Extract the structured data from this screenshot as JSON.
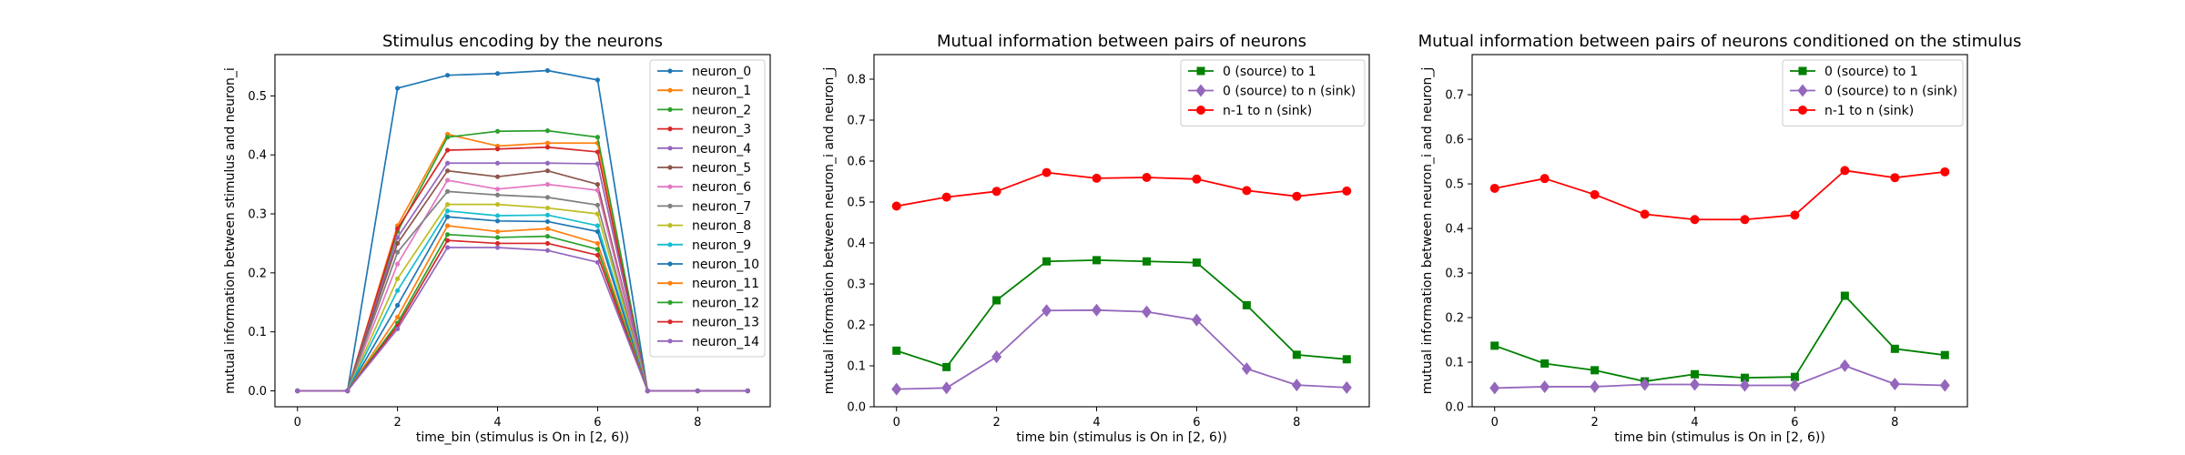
{
  "chart_data": [
    {
      "type": "line",
      "title": "Stimulus encoding by the neurons",
      "xlabel": "time_bin (stimulus is On in [2, 6))",
      "ylabel": "mutual information between stimulus and neuron_i",
      "xlim": [
        -0.45,
        9.45
      ],
      "ylim": [
        -0.027,
        0.57
      ],
      "xticks": [
        0,
        2,
        4,
        6,
        8
      ],
      "yticks": [
        0.0,
        0.1,
        0.2,
        0.3,
        0.4,
        0.5
      ],
      "ytick_labels": [
        "0.0",
        "0.1",
        "0.2",
        "0.3",
        "0.4",
        "0.5"
      ],
      "legend_position": "top-right",
      "x": [
        0,
        1,
        2,
        3,
        4,
        5,
        6,
        7,
        8,
        9
      ],
      "series": [
        {
          "name": "neuron_0",
          "color": "#1f77b4",
          "marker": "dot",
          "values": [
            0,
            0,
            0.513,
            0.535,
            0.538,
            0.543,
            0.527,
            0,
            0,
            0
          ]
        },
        {
          "name": "neuron_1",
          "color": "#ff7f0e",
          "marker": "dot",
          "values": [
            0,
            0,
            0.28,
            0.435,
            0.415,
            0.42,
            0.42,
            0,
            0,
            0
          ]
        },
        {
          "name": "neuron_2",
          "color": "#2ca02c",
          "marker": "dot",
          "values": [
            0,
            0,
            0.27,
            0.43,
            0.44,
            0.441,
            0.43,
            0,
            0,
            0
          ]
        },
        {
          "name": "neuron_3",
          "color": "#d62728",
          "marker": "dot",
          "values": [
            0,
            0,
            0.275,
            0.408,
            0.41,
            0.413,
            0.405,
            0,
            0,
            0
          ]
        },
        {
          "name": "neuron_4",
          "color": "#9467bd",
          "marker": "dot",
          "values": [
            0,
            0,
            0.26,
            0.386,
            0.386,
            0.386,
            0.385,
            0,
            0,
            0
          ]
        },
        {
          "name": "neuron_5",
          "color": "#8c564b",
          "marker": "dot",
          "values": [
            0,
            0,
            0.25,
            0.373,
            0.363,
            0.373,
            0.35,
            0,
            0,
            0
          ]
        },
        {
          "name": "neuron_6",
          "color": "#e377c2",
          "marker": "dot",
          "values": [
            0,
            0,
            0.215,
            0.357,
            0.342,
            0.35,
            0.34,
            0,
            0,
            0
          ]
        },
        {
          "name": "neuron_7",
          "color": "#7f7f7f",
          "marker": "dot",
          "values": [
            0,
            0,
            0.235,
            0.338,
            0.332,
            0.328,
            0.315,
            0,
            0,
            0
          ]
        },
        {
          "name": "neuron_8",
          "color": "#bcbd22",
          "marker": "dot",
          "values": [
            0,
            0,
            0.19,
            0.316,
            0.316,
            0.31,
            0.3,
            0,
            0,
            0
          ]
        },
        {
          "name": "neuron_9",
          "color": "#17becf",
          "marker": "dot",
          "values": [
            0,
            0,
            0.17,
            0.305,
            0.297,
            0.298,
            0.28,
            0,
            0,
            0
          ]
        },
        {
          "name": "neuron_10",
          "color": "#1f77b4",
          "marker": "dot",
          "values": [
            0,
            0,
            0.145,
            0.295,
            0.288,
            0.287,
            0.27,
            0,
            0,
            0
          ]
        },
        {
          "name": "neuron_11",
          "color": "#ff7f0e",
          "marker": "dot",
          "values": [
            0,
            0,
            0.125,
            0.28,
            0.27,
            0.275,
            0.25,
            0,
            0,
            0
          ]
        },
        {
          "name": "neuron_12",
          "color": "#2ca02c",
          "marker": "dot",
          "values": [
            0,
            0,
            0.115,
            0.265,
            0.26,
            0.262,
            0.24,
            0,
            0,
            0
          ]
        },
        {
          "name": "neuron_13",
          "color": "#d62728",
          "marker": "dot",
          "values": [
            0,
            0,
            0.11,
            0.255,
            0.25,
            0.25,
            0.23,
            0,
            0,
            0
          ]
        },
        {
          "name": "neuron_14",
          "color": "#9467bd",
          "marker": "dot",
          "values": [
            0,
            0,
            0.105,
            0.243,
            0.243,
            0.238,
            0.218,
            0,
            0,
            0
          ]
        }
      ]
    },
    {
      "type": "line",
      "title": "Mutual information between pairs of neurons",
      "xlabel": "time bin (stimulus is On in [2, 6))",
      "ylabel": "mutual information between neuron_i and neuron_j",
      "xlim": [
        -0.45,
        9.45
      ],
      "ylim": [
        0,
        0.86
      ],
      "xticks": [
        0,
        2,
        4,
        6,
        8
      ],
      "yticks": [
        0.0,
        0.1,
        0.2,
        0.3,
        0.4,
        0.5,
        0.6,
        0.7,
        0.8
      ],
      "ytick_labels": [
        "0.0",
        "0.1",
        "0.2",
        "0.3",
        "0.4",
        "0.5",
        "0.6",
        "0.7",
        "0.8"
      ],
      "legend_position": "top-right",
      "x": [
        0,
        1,
        2,
        3,
        4,
        5,
        6,
        7,
        8,
        9
      ],
      "series": [
        {
          "name": "0 (source) to 1",
          "color": "#008000",
          "marker": "square",
          "values": [
            0.137,
            0.097,
            0.26,
            0.355,
            0.358,
            0.355,
            0.352,
            0.248,
            0.127,
            0.116
          ]
        },
        {
          "name": "0 (source) to n (sink)",
          "color": "#9467bd",
          "marker": "diamond",
          "values": [
            0.043,
            0.046,
            0.122,
            0.235,
            0.236,
            0.232,
            0.212,
            0.093,
            0.053,
            0.047
          ]
        },
        {
          "name": "n-1 to n (sink)",
          "color": "#ff0000",
          "marker": "circle",
          "values": [
            0.49,
            0.512,
            0.526,
            0.572,
            0.558,
            0.56,
            0.556,
            0.528,
            0.514,
            0.527
          ]
        }
      ]
    },
    {
      "type": "line",
      "title": "Mutual information between pairs of neurons conditioned on the stimulus",
      "xlabel": "time bin (stimulus is On in [2, 6))",
      "ylabel": "mutual information between neuron_i and neuron_j",
      "xlim": [
        -0.45,
        9.45
      ],
      "ylim": [
        0,
        0.79
      ],
      "xticks": [
        0,
        2,
        4,
        6,
        8
      ],
      "yticks": [
        0.0,
        0.1,
        0.2,
        0.3,
        0.4,
        0.5,
        0.6,
        0.7
      ],
      "ytick_labels": [
        "0.0",
        "0.1",
        "0.2",
        "0.3",
        "0.4",
        "0.5",
        "0.6",
        "0.7"
      ],
      "legend_position": "top-right",
      "x": [
        0,
        1,
        2,
        3,
        4,
        5,
        6,
        7,
        8,
        9
      ],
      "series": [
        {
          "name": "0 (source) to 1",
          "color": "#008000",
          "marker": "square",
          "values": [
            0.137,
            0.097,
            0.082,
            0.057,
            0.073,
            0.065,
            0.067,
            0.249,
            0.13,
            0.116
          ]
        },
        {
          "name": "0 (source) to n (sink)",
          "color": "#9467bd",
          "marker": "diamond",
          "values": [
            0.042,
            0.045,
            0.045,
            0.05,
            0.05,
            0.048,
            0.048,
            0.092,
            0.051,
            0.048
          ]
        },
        {
          "name": "n-1 to n (sink)",
          "color": "#ff0000",
          "marker": "circle",
          "values": [
            0.49,
            0.512,
            0.476,
            0.432,
            0.42,
            0.42,
            0.43,
            0.53,
            0.514,
            0.527
          ]
        }
      ]
    }
  ]
}
